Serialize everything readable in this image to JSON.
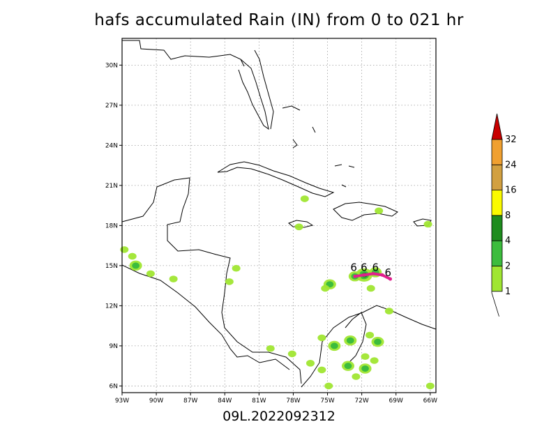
{
  "chart_data": {
    "type": "heatmap",
    "title": "hafs accumulated Rain (IN) from 0 to 021 hr",
    "subtitle": "09L.2022092312",
    "x_ticks": [
      "93W",
      "90W",
      "87W",
      "84W",
      "81W",
      "78W",
      "75W",
      "72W",
      "69W",
      "66W"
    ],
    "x_tick_values": [
      -93,
      -90,
      -87,
      -84,
      -81,
      -78,
      -75,
      -72,
      -69,
      -66
    ],
    "y_ticks": [
      "6N",
      "9N",
      "12N",
      "15N",
      "18N",
      "21N",
      "24N",
      "27N",
      "30N"
    ],
    "y_tick_values": [
      6,
      9,
      12,
      15,
      18,
      21,
      24,
      27,
      30
    ],
    "xlim": [
      -93,
      -65.5
    ],
    "ylim": [
      5.5,
      32
    ],
    "grid": true,
    "colorbar": {
      "levels": [
        "1",
        "2",
        "4",
        "8",
        "16",
        "24",
        "32"
      ],
      "colors": [
        "#a0e632",
        "#3cbc3d",
        "#1e8c1e",
        "#fafa00",
        "#d2a040",
        "#f0a030",
        "#c80000"
      ]
    },
    "rain_cells": [
      {
        "lon": -71.8,
        "lat": 14.3,
        "level": 3
      },
      {
        "lon": -72.6,
        "lat": 14.2,
        "level": 2
      },
      {
        "lon": -70.8,
        "lat": 14.5,
        "level": 2
      },
      {
        "lon": -74.8,
        "lat": 13.6,
        "level": 2
      },
      {
        "lon": -75.2,
        "lat": 13.3,
        "level": 1
      },
      {
        "lon": -91.8,
        "lat": 15.0,
        "level": 2
      },
      {
        "lon": -92.8,
        "lat": 16.2,
        "level": 1
      },
      {
        "lon": -92.1,
        "lat": 15.7,
        "level": 1
      },
      {
        "lon": -90.5,
        "lat": 14.4,
        "level": 1
      },
      {
        "lon": -88.5,
        "lat": 14.0,
        "level": 1
      },
      {
        "lon": -83.0,
        "lat": 14.8,
        "level": 1
      },
      {
        "lon": -83.6,
        "lat": 13.8,
        "level": 1
      },
      {
        "lon": -77.5,
        "lat": 17.9,
        "level": 1
      },
      {
        "lon": -77.0,
        "lat": 20.0,
        "level": 1
      },
      {
        "lon": -70.5,
        "lat": 19.1,
        "level": 1
      },
      {
        "lon": -71.2,
        "lat": 13.3,
        "level": 1
      },
      {
        "lon": -75.5,
        "lat": 9.6,
        "level": 1
      },
      {
        "lon": -74.4,
        "lat": 9.0,
        "level": 2
      },
      {
        "lon": -73.0,
        "lat": 9.4,
        "level": 2
      },
      {
        "lon": -71.7,
        "lat": 8.2,
        "level": 1
      },
      {
        "lon": -70.6,
        "lat": 9.3,
        "level": 2
      },
      {
        "lon": -71.3,
        "lat": 9.8,
        "level": 1
      },
      {
        "lon": -73.2,
        "lat": 7.5,
        "level": 2
      },
      {
        "lon": -71.7,
        "lat": 7.3,
        "level": 2
      },
      {
        "lon": -72.5,
        "lat": 6.7,
        "level": 1
      },
      {
        "lon": -70.9,
        "lat": 7.9,
        "level": 1
      },
      {
        "lon": -76.5,
        "lat": 7.7,
        "level": 1
      },
      {
        "lon": -78.1,
        "lat": 8.4,
        "level": 1
      },
      {
        "lon": -74.9,
        "lat": 6.0,
        "level": 1
      },
      {
        "lon": -75.5,
        "lat": 7.2,
        "level": 1
      },
      {
        "lon": -69.6,
        "lat": 11.6,
        "level": 1
      },
      {
        "lon": -66.0,
        "lat": 6.0,
        "level": 1
      },
      {
        "lon": -66.2,
        "lat": 18.1,
        "level": 1
      },
      {
        "lon": -80.0,
        "lat": 8.8,
        "level": 1
      }
    ],
    "track": {
      "color": "#e0208c",
      "points": [
        {
          "lon": -72.6,
          "lat": 14.2
        },
        {
          "lon": -71.8,
          "lat": 14.3
        },
        {
          "lon": -71.0,
          "lat": 14.4
        },
        {
          "lon": -70.2,
          "lat": 14.3
        },
        {
          "lon": -69.5,
          "lat": 14.0
        }
      ]
    },
    "markers": [
      {
        "lon": -72.7,
        "lat": 14.6,
        "text": "6"
      },
      {
        "lon": -71.8,
        "lat": 14.6,
        "text": "6"
      },
      {
        "lon": -70.8,
        "lat": 14.6,
        "text": "6"
      },
      {
        "lon": -69.7,
        "lat": 14.2,
        "text": "6"
      }
    ]
  }
}
